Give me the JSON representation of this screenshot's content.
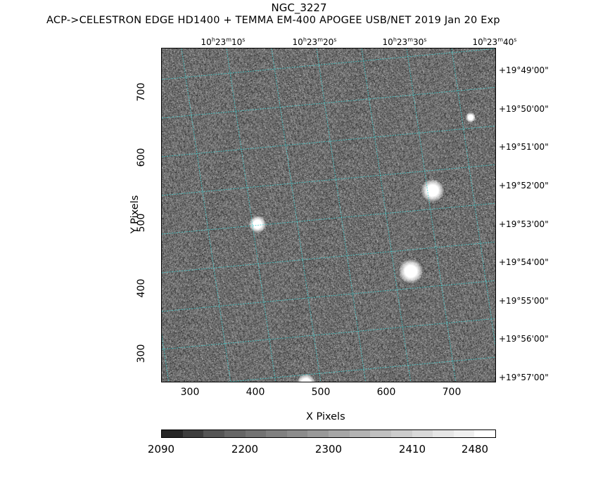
{
  "title": "NGC_3227",
  "subtitle": "ACP->CELESTRON EDGE HD1400 + TEMMA EM-400 APOGEE USB/NET   2019 Jan 20    Exp",
  "x_axis": {
    "label": "X Pixels",
    "ticks": [
      "300",
      "400",
      "500",
      "600",
      "700"
    ]
  },
  "y_axis": {
    "label": "Y Pixels",
    "ticks": [
      "300",
      "400",
      "500",
      "600",
      "700"
    ]
  },
  "ra_ticks": [
    {
      "h": "10",
      "m": "23",
      "s": "10"
    },
    {
      "h": "10",
      "m": "23",
      "s": "20"
    },
    {
      "h": "10",
      "m": "23",
      "s": "30"
    },
    {
      "h": "10",
      "m": "23",
      "s": "40"
    }
  ],
  "dec_ticks": [
    {
      "d": "+19",
      "m": "49",
      "s": "00"
    },
    {
      "d": "+19",
      "m": "50",
      "s": "00"
    },
    {
      "d": "+19",
      "m": "51",
      "s": "00"
    },
    {
      "d": "+19",
      "m": "52",
      "s": "00"
    },
    {
      "d": "+19",
      "m": "53",
      "s": "00"
    },
    {
      "d": "+19",
      "m": "54",
      "s": "00"
    },
    {
      "d": "+19",
      "m": "55",
      "s": "00"
    },
    {
      "d": "+19",
      "m": "56",
      "s": "00"
    },
    {
      "d": "+19",
      "m": "57",
      "s": "00"
    }
  ],
  "colorbar": {
    "ticks": [
      "2090",
      "2200",
      "2300",
      "2410",
      "2480"
    ],
    "colors": [
      "#262626",
      "#3d3d3d",
      "#555555",
      "#666666",
      "#737373",
      "#808080",
      "#8c8c8c",
      "#999999",
      "#a6a6a6",
      "#b3b3b3",
      "#c0c0c0",
      "#cccccc",
      "#d9d9d9",
      "#e6e6e6",
      "#f0f0f0",
      "#ffffff"
    ]
  },
  "grid_color": "#3fd0d0"
}
